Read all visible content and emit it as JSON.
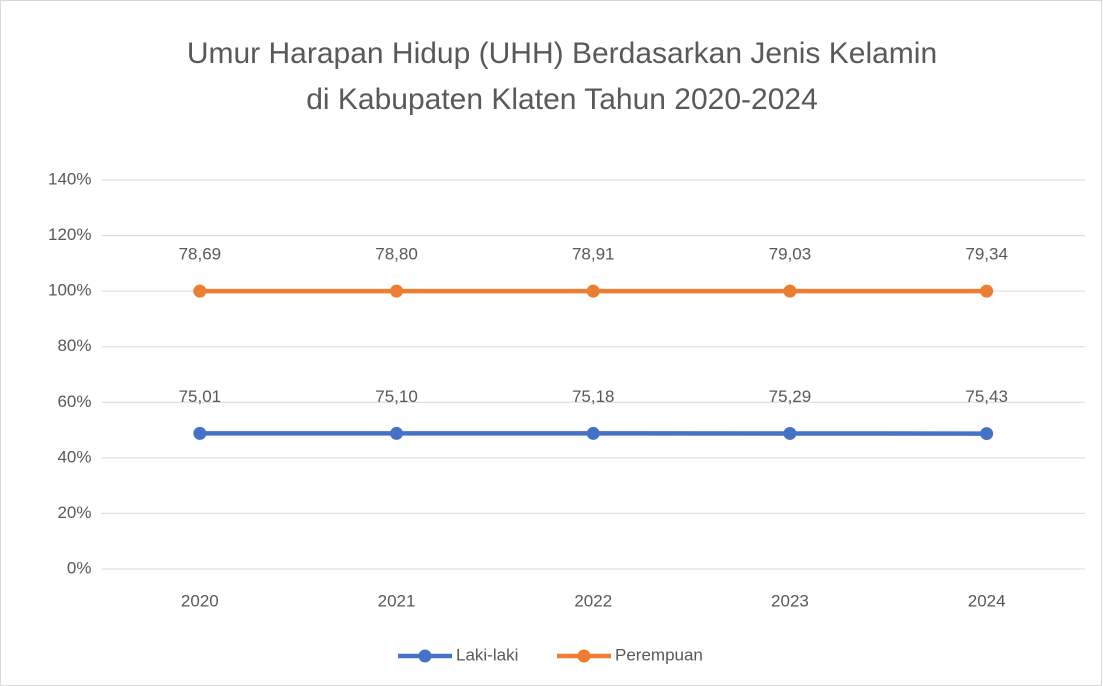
{
  "chart_data": {
    "type": "line",
    "stacking": "percent",
    "title": [
      "Umur Harapan Hidup (UHH) Berdasarkan Jenis Kelamin",
      "di Kabupaten Klaten Tahun 2020-2024"
    ],
    "categories": [
      "2020",
      "2021",
      "2022",
      "2023",
      "2024"
    ],
    "series": [
      {
        "name": "Laki-laki",
        "color": "#4472c4",
        "values": [
          75.01,
          75.1,
          75.18,
          75.29,
          75.43
        ],
        "value_labels": [
          "75,01",
          "75,10",
          "75,18",
          "75,29",
          "75,43"
        ]
      },
      {
        "name": "Perempuan",
        "color": "#ed7d31",
        "values": [
          78.69,
          78.8,
          78.91,
          79.03,
          79.34
        ],
        "value_labels": [
          "78,69",
          "78,80",
          "78,91",
          "79,03",
          "79,34"
        ]
      }
    ],
    "ylim": [
      0,
      140
    ],
    "yticks": [
      {
        "value": 0,
        "label": "0%"
      },
      {
        "value": 20,
        "label": "20%"
      },
      {
        "value": 40,
        "label": "40%"
      },
      {
        "value": 60,
        "label": "60%"
      },
      {
        "value": 80,
        "label": "80%"
      },
      {
        "value": 100,
        "label": "100%"
      },
      {
        "value": 120,
        "label": "120%"
      },
      {
        "value": 140,
        "label": "140%"
      }
    ],
    "grid": true,
    "legend": "bottom"
  }
}
